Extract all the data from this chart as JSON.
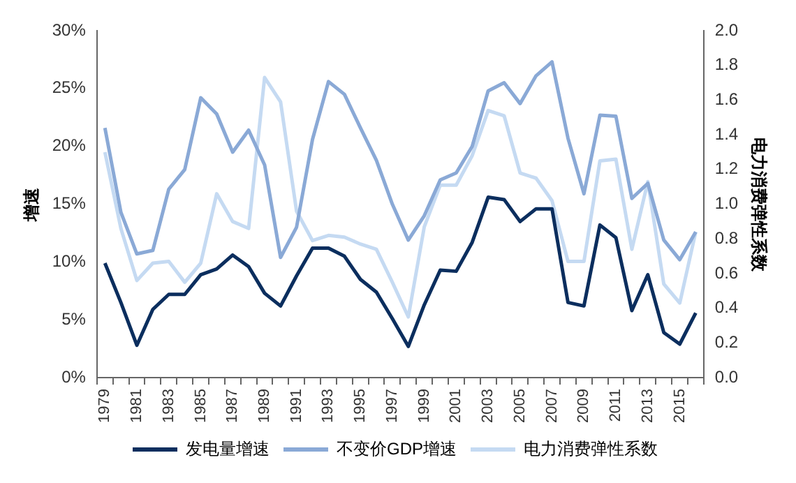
{
  "chart_data": {
    "type": "line",
    "categories": [
      "1979",
      null,
      "1981",
      null,
      "1983",
      null,
      "1985",
      null,
      "1987",
      null,
      "1989",
      null,
      "1991",
      null,
      "1993",
      null,
      "1995",
      null,
      "1997",
      null,
      "1999",
      null,
      "2001",
      null,
      "2003",
      null,
      "2005",
      null,
      "2007",
      null,
      "2009",
      null,
      "2011",
      null,
      "2013",
      null,
      "2015",
      null
    ],
    "series": [
      {
        "name": "发电量增速",
        "color": "#0b2e5e",
        "values": [
          9.9,
          6.5,
          2.8,
          5.9,
          7.2,
          7.2,
          8.9,
          9.4,
          10.6,
          9.6,
          7.3,
          6.2,
          8.8,
          11.2,
          11.2,
          10.5,
          8.5,
          7.4,
          5.1,
          2.7,
          6.3,
          9.3,
          9.2,
          11.7,
          15.6,
          15.4,
          13.5,
          14.6,
          14.6,
          6.5,
          6.2,
          13.2,
          12.1,
          5.8,
          8.9,
          3.9,
          2.9,
          5.6
        ]
      },
      {
        "name": "不变价GDP增速",
        "color": "#8aa9d6",
        "values": [
          21.6,
          14.3,
          10.7,
          11.0,
          16.3,
          18.0,
          24.2,
          22.8,
          19.5,
          21.4,
          18.4,
          10.4,
          13.0,
          20.6,
          25.6,
          24.5,
          21.6,
          18.8,
          15.0,
          11.9,
          14.0,
          17.1,
          17.7,
          20.0,
          24.8,
          25.5,
          23.7,
          26.1,
          27.3,
          20.7,
          15.9,
          22.7,
          22.6,
          15.5,
          16.8,
          11.9,
          10.2,
          12.6
        ]
      },
      {
        "name": "电力消费弹性系数",
        "color": "#c5daf2",
        "axis": "y2",
        "values": [
          1.3,
          0.86,
          0.56,
          0.66,
          0.67,
          0.55,
          0.66,
          1.06,
          0.9,
          0.86,
          1.73,
          1.59,
          0.96,
          0.79,
          0.82,
          0.81,
          0.77,
          0.74,
          0.55,
          0.35,
          0.87,
          1.11,
          1.11,
          1.28,
          1.54,
          1.51,
          1.18,
          1.15,
          1.02,
          0.67,
          0.67,
          1.25,
          1.26,
          0.74,
          1.13,
          0.54,
          0.43,
          0.84
        ]
      }
    ],
    "ylabel": "增速",
    "y2label": "电力消费弹性系数",
    "ylim": [
      0,
      30
    ],
    "yticks": [
      {
        "value": 0,
        "label": "0%"
      },
      {
        "value": 5,
        "label": "5%"
      },
      {
        "value": 10,
        "label": "10%"
      },
      {
        "value": 15,
        "label": "15%"
      },
      {
        "value": 20,
        "label": "20%"
      },
      {
        "value": 25,
        "label": "25%"
      },
      {
        "value": 30,
        "label": "30%"
      }
    ],
    "y2lim": [
      0,
      2
    ],
    "y2ticks": [
      {
        "value": 0,
        "label": "0.0"
      },
      {
        "value": 0.2,
        "label": "0.2"
      },
      {
        "value": 0.4,
        "label": "0.4"
      },
      {
        "value": 0.6,
        "label": "0.6"
      },
      {
        "value": 0.8,
        "label": "0.8"
      },
      {
        "value": 1,
        "label": "1.0"
      },
      {
        "value": 1.2,
        "label": "1.2"
      },
      {
        "value": 1.4,
        "label": "1.4"
      },
      {
        "value": 1.6,
        "label": "1.6"
      },
      {
        "value": 1.8,
        "label": "1.8"
      },
      {
        "value": 2,
        "label": "2.0"
      }
    ],
    "grid": false,
    "legend": "bottom",
    "marker": "none",
    "line_style": "solid"
  }
}
